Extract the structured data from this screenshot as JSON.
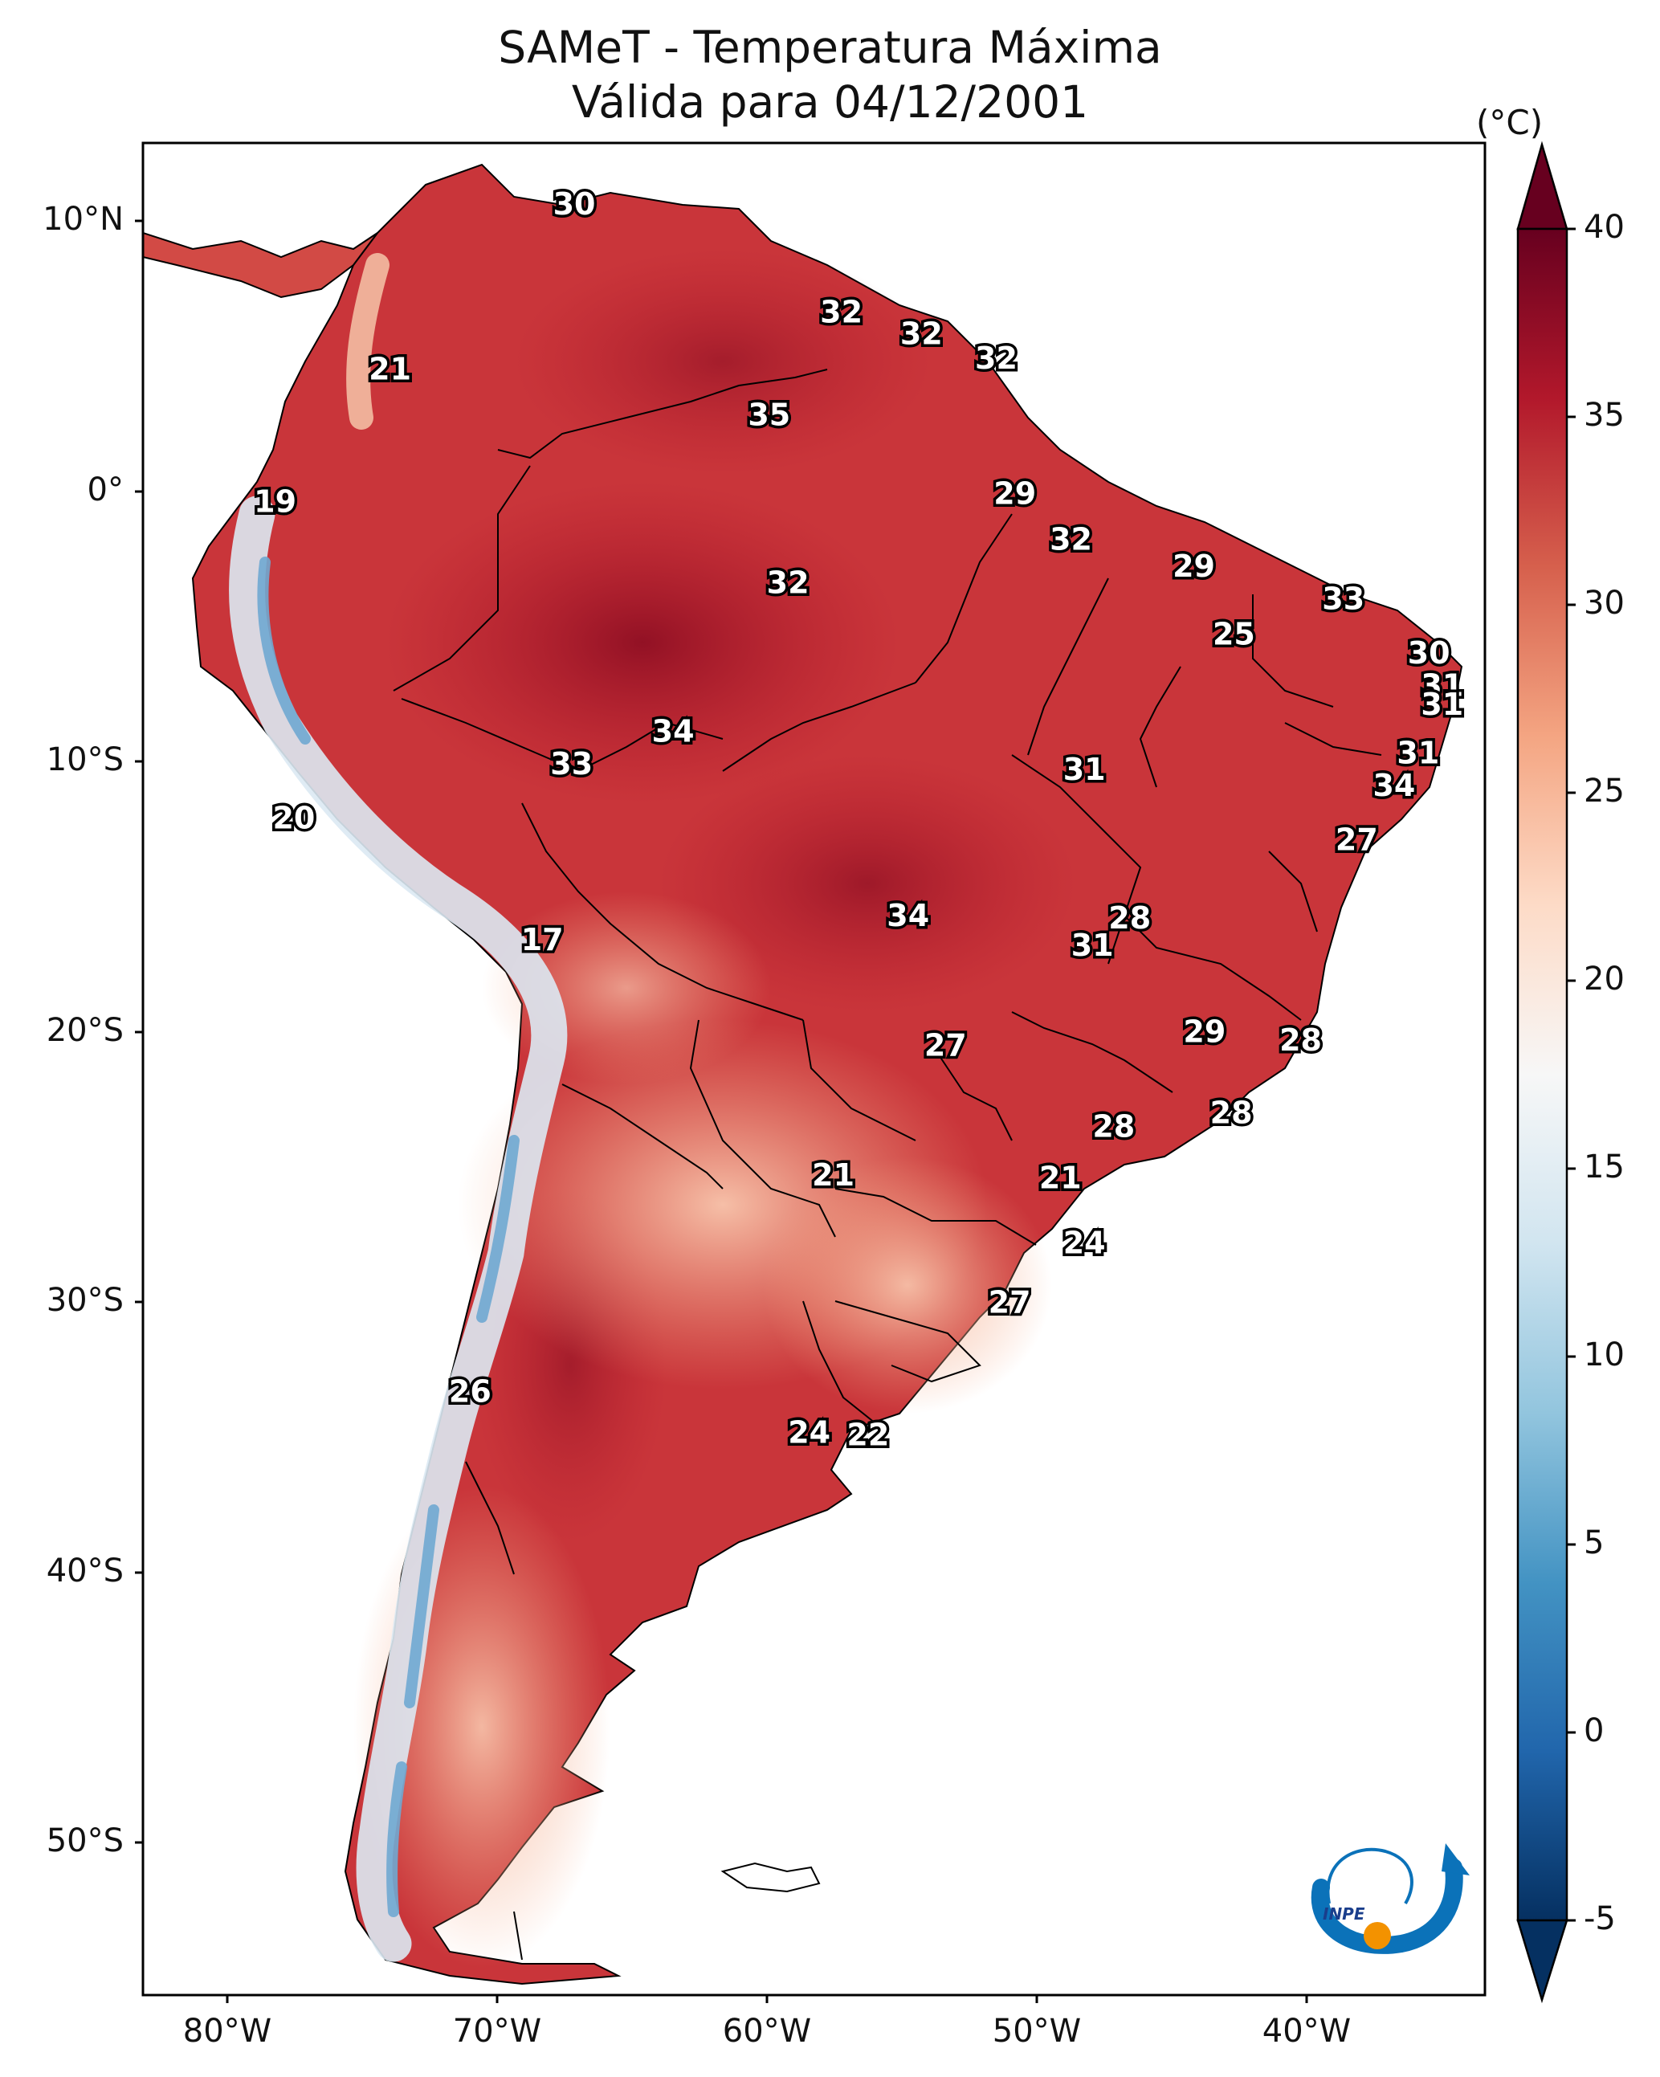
{
  "title": {
    "line1": "SAMeT - Temperatura Máxima",
    "line2": "Válida para 04/12/2001"
  },
  "map": {
    "lat_ticks": [
      "10°N",
      "0°",
      "10°S",
      "20°S",
      "30°S",
      "40°S",
      "50°S"
    ],
    "lon_ticks": [
      "80°W",
      "70°W",
      "60°W",
      "50°W",
      "40°W"
    ],
    "contour_labels": [
      {
        "value": "30",
        "lon": -67.0,
        "lat": 10.6
      },
      {
        "value": "32",
        "lon": -57.0,
        "lat": 6.6
      },
      {
        "value": "32",
        "lon": -54.0,
        "lat": 5.8
      },
      {
        "value": "32",
        "lon": -51.2,
        "lat": 4.9
      },
      {
        "value": "21",
        "lon": -73.9,
        "lat": 4.5
      },
      {
        "value": "35",
        "lon": -59.7,
        "lat": 2.8
      },
      {
        "value": "19",
        "lon": -78.2,
        "lat": -0.4
      },
      {
        "value": "29",
        "lon": -50.5,
        "lat": -0.1
      },
      {
        "value": "32",
        "lon": -48.4,
        "lat": -1.8
      },
      {
        "value": "32",
        "lon": -59.0,
        "lat": -3.4
      },
      {
        "value": "29",
        "lon": -43.8,
        "lat": -2.8
      },
      {
        "value": "33",
        "lon": -38.2,
        "lat": -4.0
      },
      {
        "value": "25",
        "lon": -42.3,
        "lat": -5.3
      },
      {
        "value": "30",
        "lon": -35.0,
        "lat": -6.0
      },
      {
        "value": "31",
        "lon": -34.5,
        "lat": -7.2
      },
      {
        "value": "31",
        "lon": -34.5,
        "lat": -7.9
      },
      {
        "value": "34",
        "lon": -63.3,
        "lat": -8.9
      },
      {
        "value": "33",
        "lon": -67.1,
        "lat": -10.1
      },
      {
        "value": "31",
        "lon": -35.4,
        "lat": -9.7
      },
      {
        "value": "31",
        "lon": -47.9,
        "lat": -10.3
      },
      {
        "value": "34",
        "lon": -36.3,
        "lat": -10.9
      },
      {
        "value": "20",
        "lon": -77.5,
        "lat": -12.1
      },
      {
        "value": "27",
        "lon": -37.7,
        "lat": -12.9
      },
      {
        "value": "17",
        "lon": -68.2,
        "lat": -16.6
      },
      {
        "value": "34",
        "lon": -54.5,
        "lat": -15.7
      },
      {
        "value": "28",
        "lon": -46.2,
        "lat": -15.8
      },
      {
        "value": "31",
        "lon": -47.6,
        "lat": -16.8
      },
      {
        "value": "29",
        "lon": -43.4,
        "lat": -20.0
      },
      {
        "value": "28",
        "lon": -39.8,
        "lat": -20.3
      },
      {
        "value": "27",
        "lon": -53.1,
        "lat": -20.5
      },
      {
        "value": "28",
        "lon": -42.4,
        "lat": -23.0
      },
      {
        "value": "28",
        "lon": -46.8,
        "lat": -23.5
      },
      {
        "value": "21",
        "lon": -57.3,
        "lat": -25.3
      },
      {
        "value": "21",
        "lon": -48.8,
        "lat": -25.4
      },
      {
        "value": "24",
        "lon": -47.9,
        "lat": -27.8
      },
      {
        "value": "27",
        "lon": -50.7,
        "lat": -30.0
      },
      {
        "value": "26",
        "lon": -70.9,
        "lat": -33.3
      },
      {
        "value": "24",
        "lon": -58.2,
        "lat": -34.8
      },
      {
        "value": "22",
        "lon": -56.0,
        "lat": -34.9
      }
    ]
  },
  "colorbar": {
    "unit": "(°C)",
    "ticks": [
      "40",
      "35",
      "30",
      "25",
      "20",
      "15",
      "10",
      "5",
      "0",
      "-5"
    ],
    "min": -5,
    "max": 40,
    "colors": [
      "#053061",
      "#2166ac",
      "#4393c3",
      "#92c5de",
      "#d1e5f0",
      "#f7f7f7",
      "#fddbc7",
      "#f4a582",
      "#d6604d",
      "#b2182b",
      "#67001f"
    ]
  },
  "logo": {
    "text": "INPE"
  }
}
